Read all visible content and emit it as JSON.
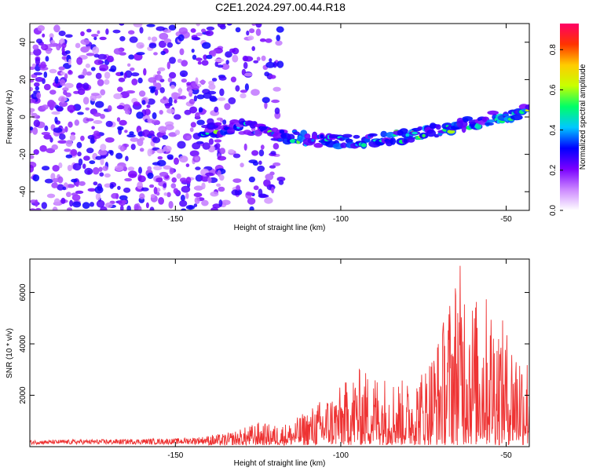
{
  "title": "C2E1.2024.297.00.44.R18",
  "chart_data": [
    {
      "type": "heatmap",
      "xlabel": "Height of straight line (km)",
      "ylabel": "Frequency (Hz)",
      "xlim": [
        -194,
        -43
      ],
      "ylim": [
        -50,
        50
      ],
      "xticks": [
        -150,
        -100,
        -50
      ],
      "yticks": [
        -40,
        -20,
        0,
        20,
        40
      ],
      "colorbar": {
        "label": "Normalized spectral amplitude",
        "range": [
          0,
          0.93
        ],
        "ticks": [
          0.0,
          0.2,
          0.4,
          0.6,
          0.8
        ],
        "stops": [
          "#ffffff",
          "#cc88ff",
          "#7a00ff",
          "#0000ff",
          "#00c8ff",
          "#00ff66",
          "#c8ff00",
          "#ffcc00",
          "#ff3300",
          "#ff0066"
        ]
      },
      "ridge": {
        "x": [
          -140,
          -130,
          -120,
          -110,
          -100,
          -90,
          -80,
          -70,
          -60,
          -50,
          -45
        ],
        "y": [
          -7,
          -5,
          -9,
          -12,
          -13,
          -12,
          -10,
          -7,
          -3,
          1,
          3
        ]
      },
      "noise_region": {
        "x_max": -118,
        "amplitude": 0.25
      },
      "ridge_peak_amplitude": 0.93,
      "grid": false
    },
    {
      "type": "line",
      "xlabel": "Height of straight line (km)",
      "ylabel": "SNR (10 * v/v)",
      "xlim": [
        -194,
        -43
      ],
      "ylim": [
        0,
        7300
      ],
      "xticks": [
        -150,
        -100,
        -50
      ],
      "yticks": [
        2000,
        4000,
        6000
      ],
      "color": "#ee3333",
      "envelope": {
        "x": [
          -194,
          -150,
          -135,
          -130,
          -125,
          -120,
          -115,
          -110,
          -105,
          -100,
          -95,
          -90,
          -85,
          -80,
          -75,
          -70,
          -65,
          -62,
          -60,
          -55,
          -50,
          -45,
          -43
        ],
        "y": [
          250,
          320,
          450,
          650,
          900,
          800,
          900,
          1400,
          1900,
          2300,
          3000,
          2900,
          2700,
          2500,
          3100,
          4500,
          7000,
          7300,
          5800,
          5900,
          4600,
          4000,
          3500
        ]
      },
      "grid": false
    }
  ]
}
